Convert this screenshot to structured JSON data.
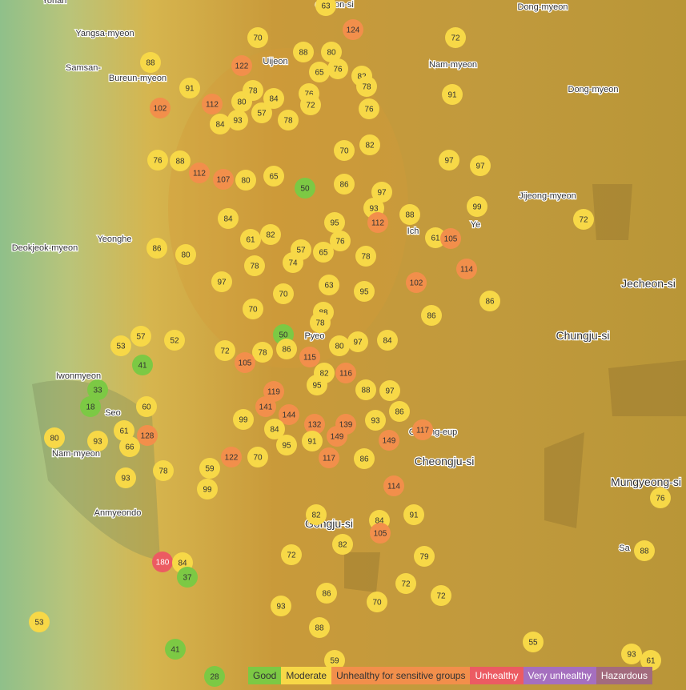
{
  "places": [
    "Yonan",
    "ocheon-si",
    "Yangsa-myeon",
    "Samsan-",
    "Bureun-myeon",
    "Uijeon",
    "Dong-myeon",
    "Nam-myeon",
    "Dong-myeon",
    "Jijeong-myeon",
    "Deokjeok-myeon",
    "Yeonghe",
    "Jecheon-si",
    "Chungju-si",
    "Pyeo",
    "Iwonmyeon",
    "Seo",
    "Nam-myeon",
    "Cheongju-si",
    "Anmyeondo",
    "Gongju-si",
    "Mungyeong-si",
    "Sa",
    "Ich",
    "Ye",
    "Cheong-eup"
  ],
  "aqi_markers": [
    63,
    124,
    70,
    72,
    88,
    80,
    88,
    122,
    65,
    76,
    82,
    91,
    78,
    78,
    84,
    76,
    102,
    112,
    80,
    72,
    91,
    76,
    84,
    93,
    57,
    78,
    82,
    70,
    97,
    97,
    76,
    88,
    112,
    107,
    80,
    65,
    50,
    86,
    97,
    99,
    93,
    112,
    88,
    72,
    61,
    105,
    84,
    61,
    82,
    95,
    76,
    57,
    65,
    74,
    78,
    114,
    86,
    80,
    78,
    97,
    63,
    102,
    70,
    95,
    86,
    70,
    88,
    78,
    86,
    57,
    53,
    52,
    50,
    72,
    78,
    86,
    80,
    97,
    84,
    115,
    105,
    41,
    82,
    116,
    95,
    88,
    97,
    33,
    119,
    18,
    60,
    141,
    144,
    86,
    99,
    93,
    117,
    132,
    139,
    84,
    149,
    149,
    128,
    61,
    91,
    95,
    93,
    66,
    80,
    117,
    122,
    70,
    86,
    59,
    78,
    93,
    99,
    114,
    82,
    91,
    84,
    76,
    105,
    82,
    72,
    79,
    88,
    180,
    84,
    37,
    72,
    72,
    86,
    70,
    93,
    53,
    88,
    55,
    41,
    93,
    61,
    59,
    28
  ],
  "legend": [
    {
      "label": "Good",
      "color": "#7cc944"
    },
    {
      "label": "Moderate",
      "color": "#f7d847"
    },
    {
      "label": "Unhealthy for sensitive groups",
      "color": "#f28f4b"
    },
    {
      "label": "Unhealthy",
      "color": "#ec5b62"
    },
    {
      "label": "Very unhealthy",
      "color": "#a56fbf"
    },
    {
      "label": "Hazardous",
      "color": "#a36b7e"
    }
  ]
}
